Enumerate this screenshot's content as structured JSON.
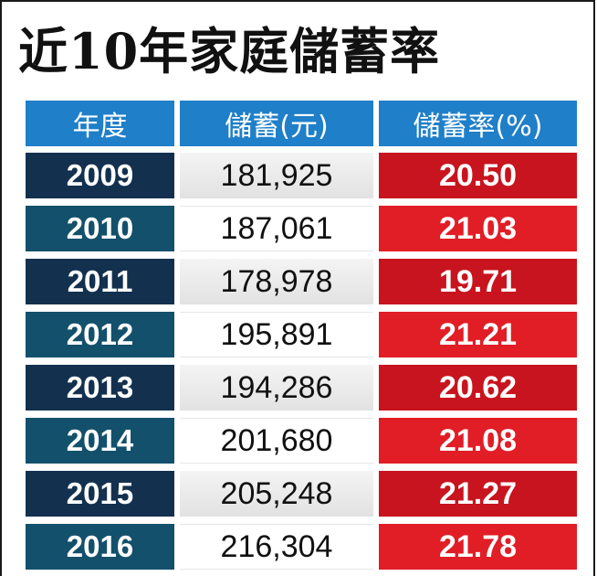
{
  "title": "近10年家庭儲蓄率",
  "headers": {
    "year": "年度",
    "savings": "儲蓄(元)",
    "rate": "儲蓄率(%)"
  },
  "rows": [
    {
      "year": "2009",
      "savings": "181,925",
      "rate": "20.50"
    },
    {
      "year": "2010",
      "savings": "187,061",
      "rate": "21.03"
    },
    {
      "year": "2011",
      "savings": "178,978",
      "rate": "19.71"
    },
    {
      "year": "2012",
      "savings": "195,891",
      "rate": "21.21"
    },
    {
      "year": "2013",
      "savings": "194,286",
      "rate": "20.62"
    },
    {
      "year": "2014",
      "savings": "201,680",
      "rate": "21.08"
    },
    {
      "year": "2015",
      "savings": "205,248",
      "rate": "21.27"
    },
    {
      "year": "2016",
      "savings": "216,304",
      "rate": "21.78"
    }
  ],
  "colors": {
    "header_blue": "#1f7fc8",
    "year_navy": "#13314f",
    "year_teal": "#13506b",
    "rate_red": "#c8141e",
    "rate_red_bright": "#e11d26"
  },
  "chart_data": {
    "type": "table",
    "title": "近10年家庭儲蓄率",
    "columns": [
      "年度",
      "儲蓄(元)",
      "儲蓄率(%)"
    ],
    "rows": [
      [
        "2009",
        181925,
        20.5
      ],
      [
        "2010",
        187061,
        21.03
      ],
      [
        "2011",
        178978,
        19.71
      ],
      [
        "2012",
        195891,
        21.21
      ],
      [
        "2013",
        194286,
        20.62
      ],
      [
        "2014",
        201680,
        21.08
      ],
      [
        "2015",
        205248,
        21.27
      ],
      [
        "2016",
        216304,
        21.78
      ]
    ]
  }
}
